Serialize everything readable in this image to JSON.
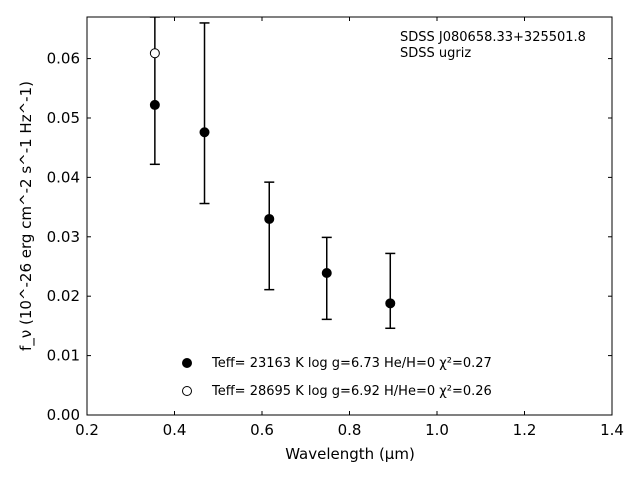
{
  "chart_data": {
    "type": "scatter",
    "title": "",
    "xlabel": "Wavelength (μm)",
    "ylabel": "f_ν (10^-26 erg cm^-2 s^-1 Hz^-1)",
    "xlim": [
      0.2,
      1.4
    ],
    "ylim": [
      0.0,
      0.067
    ],
    "xticks": [
      0.2,
      0.4,
      0.6,
      0.8,
      1.0,
      1.2,
      1.4
    ],
    "xtick_labels": [
      "0.2",
      "0.4",
      "0.6",
      "0.8",
      "1.0",
      "1.2",
      "1.4"
    ],
    "yticks": [
      0.0,
      0.01,
      0.02,
      0.03,
      0.04,
      0.05,
      0.06
    ],
    "ytick_labels": [
      "0.00",
      "0.01",
      "0.02",
      "0.03",
      "0.04",
      "0.05",
      "0.06"
    ],
    "annotations": [
      "SDSS J080658.33+325501.8",
      "SDSS ugriz"
    ],
    "observed": {
      "x": [
        0.3551,
        0.4686,
        0.6166,
        0.748,
        0.8932
      ],
      "y": [
        0.0522,
        0.0478,
        0.033,
        0.024,
        0.0188
      ],
      "y_lower": [
        0.0422,
        0.0356,
        0.0211,
        0.0161,
        0.0146
      ],
      "y_upper": [
        0.067,
        0.066,
        0.0392,
        0.0299,
        0.0272
      ]
    },
    "series": [
      {
        "name": "Teff= 23163 K  log g=6.73  He/H=0  χ²=0.27",
        "marker": "filled-circle",
        "x": [
          0.3551,
          0.4686,
          0.6166,
          0.748,
          0.8932
        ],
        "y": [
          0.0522,
          0.0476,
          0.033,
          0.0239,
          0.0188
        ]
      },
      {
        "name": "Teff= 28695 K  log g=6.92  H/He=0  χ²=0.26",
        "marker": "open-circle",
        "x": [
          0.3551
        ],
        "y": [
          0.0609
        ]
      }
    ],
    "legend_placement": "bottom-center",
    "grid": false
  }
}
